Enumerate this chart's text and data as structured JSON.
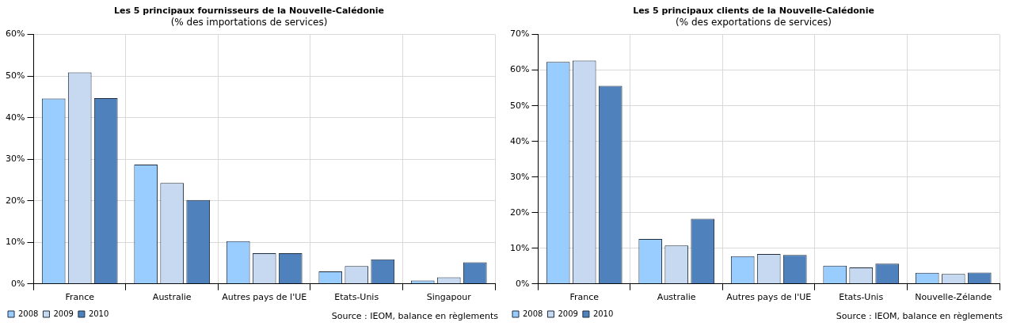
{
  "chart_data": [
    {
      "type": "bar",
      "title": "Les 5 principaux fournisseurs de la Nouvelle-Calédonie",
      "subtitle": "(% des importations de services)",
      "categories": [
        "France",
        "Australie",
        "Autres pays de l'UE",
        "Etats-Unis",
        "Singapour"
      ],
      "series": [
        {
          "name": "2008",
          "color": "#99ccff",
          "values": [
            44.6,
            28.7,
            10.3,
            3.0,
            0.8
          ]
        },
        {
          "name": "2009",
          "color": "#c6d9f1",
          "values": [
            50.9,
            24.3,
            7.4,
            4.3,
            1.6
          ]
        },
        {
          "name": "2010",
          "color": "#4f81bd",
          "values": [
            44.7,
            20.2,
            7.4,
            5.9,
            5.2
          ]
        }
      ],
      "ylim": [
        0,
        60
      ],
      "yticks": [
        {
          "value": 0,
          "label": "0%"
        },
        {
          "value": 10,
          "label": "10%"
        },
        {
          "value": 20,
          "label": "20%"
        },
        {
          "value": 30,
          "label": "30%"
        },
        {
          "value": 40,
          "label": "40%"
        },
        {
          "value": 50,
          "label": "50%"
        },
        {
          "value": 60,
          "label": "60%"
        }
      ],
      "grid": true,
      "legend": "bottom left",
      "annotations": [
        "Source : IEOM, balance en règlements"
      ]
    },
    {
      "type": "bar",
      "title": "Les 5 principaux clients de la Nouvelle-Calédonie",
      "subtitle": "(% des exportations de services)",
      "categories": [
        "France",
        "Australie",
        "Autres pays de l'UE",
        "Etats-Unis",
        "Nouvelle-Zélande"
      ],
      "series": [
        {
          "name": "2008",
          "color": "#99ccff",
          "values": [
            62.3,
            12.6,
            7.8,
            5.1,
            3.1
          ]
        },
        {
          "name": "2009",
          "color": "#c6d9f1",
          "values": [
            62.7,
            10.8,
            8.4,
            4.6,
            2.8
          ]
        },
        {
          "name": "2010",
          "color": "#4f81bd",
          "values": [
            55.6,
            18.3,
            8.1,
            5.7,
            3.2
          ]
        }
      ],
      "ylim": [
        0,
        70
      ],
      "yticks": [
        {
          "value": 0,
          "label": "0%"
        },
        {
          "value": 10,
          "label": "10%"
        },
        {
          "value": 20,
          "label": "20%"
        },
        {
          "value": 30,
          "label": "30%"
        },
        {
          "value": 40,
          "label": "40%"
        },
        {
          "value": 50,
          "label": "50%"
        },
        {
          "value": 60,
          "label": "60%"
        },
        {
          "value": 70,
          "label": "70%"
        }
      ],
      "grid": true,
      "legend": "bottom left",
      "annotations": [
        "Source : IEOM, balance en règlements"
      ]
    }
  ]
}
